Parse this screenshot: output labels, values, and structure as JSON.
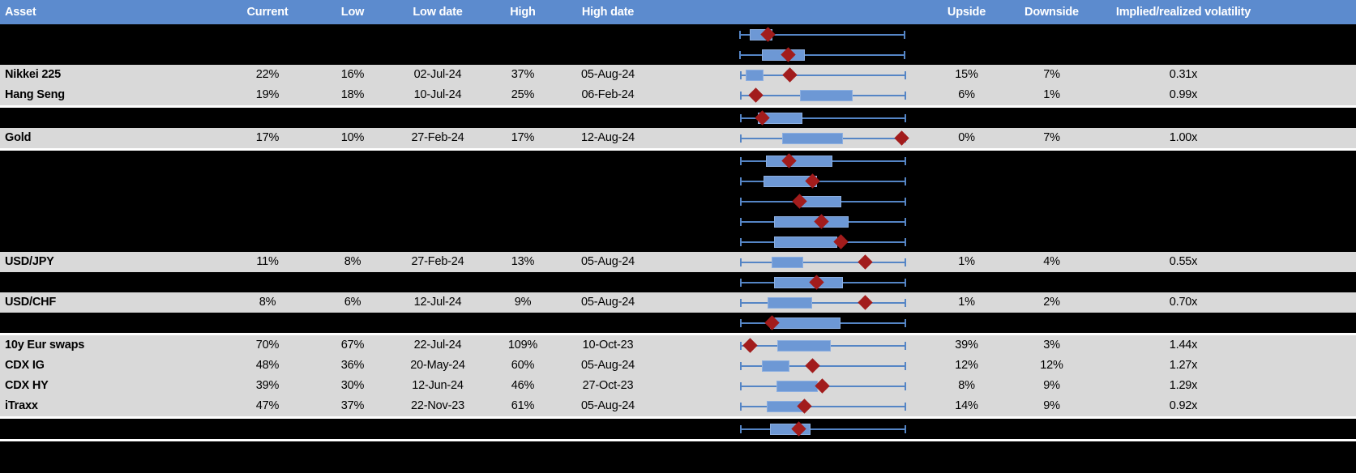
{
  "title": "Implied volatility ranges table",
  "colors": {
    "header_bg": "#5c8bce",
    "row_bg": "#d9d9d9",
    "redacted_bg": "#000000",
    "whisker_blue": "#5585c5",
    "box_blue": "#6d98d5",
    "marker_red": "#a21c1c",
    "header_text": "#ffffff",
    "separator": "#ffffff"
  },
  "header": {
    "columns": [
      "Asset",
      "Current",
      "Low",
      "Low date",
      "High",
      "High date",
      "",
      "Upside",
      "Downside",
      "Implied/realized volatility"
    ]
  },
  "chart_data": {
    "type": "box-whisker-rows",
    "note": "per-row range plot; values are % positions across the chart cell",
    "whisker_lo": 29.5,
    "whisker_hi": 94.5
  },
  "rows": [
    {
      "type": "redacted",
      "chart": {
        "lo": 29.2,
        "hi": 94.3,
        "box_lo": 33.3,
        "box_hi": 42.2,
        "marker": 40.6
      }
    },
    {
      "type": "redacted",
      "chart": {
        "lo": 29.2,
        "hi": 94.3,
        "box_lo": 38.1,
        "box_hi": 54.9,
        "marker": 48.3
      }
    },
    {
      "type": "data",
      "asset": "Nikkei 225",
      "current": "22%",
      "low": "16%",
      "low_date": "02-Jul-24",
      "high": "37%",
      "high_date": "05-Aug-24",
      "upside": "15%",
      "downside": "7%",
      "implied_realized": "0.31x",
      "chart": {
        "lo": 29.5,
        "hi": 94.5,
        "box_lo": 31.7,
        "box_hi": 38.7,
        "marker": 49.2
      }
    },
    {
      "type": "data",
      "asset": "Hang Seng",
      "current": "19%",
      "low": "18%",
      "low_date": "10-Jul-24",
      "high": "25%",
      "high_date": "06-Feb-24",
      "upside": "6%",
      "downside": "1%",
      "implied_realized": "0.99x",
      "chart": {
        "lo": 29.5,
        "hi": 94.5,
        "box_lo": 53.0,
        "box_hi": 73.7,
        "marker": 35.6
      }
    },
    {
      "type": "separator"
    },
    {
      "type": "redacted",
      "chart": {
        "lo": 29.5,
        "hi": 94.5,
        "box_lo": 36.5,
        "box_hi": 54.0,
        "marker": 38.4
      }
    },
    {
      "type": "data",
      "asset": "Gold",
      "current": "17%",
      "low": "10%",
      "low_date": "27-Feb-24",
      "high": "17%",
      "high_date": "12-Aug-24",
      "upside": "0%",
      "downside": "7%",
      "implied_realized": "1.00x",
      "chart": {
        "lo": 29.5,
        "hi": 94.5,
        "box_lo": 46.0,
        "box_hi": 69.8,
        "marker": 93.0
      }
    },
    {
      "type": "separator"
    },
    {
      "type": "redacted",
      "chart": {
        "lo": 29.5,
        "hi": 94.5,
        "box_lo": 39.7,
        "box_hi": 65.7,
        "marker": 48.6
      }
    },
    {
      "type": "redacted",
      "chart": {
        "lo": 29.5,
        "hi": 94.5,
        "box_lo": 38.7,
        "box_hi": 59.7,
        "marker": 57.8
      }
    },
    {
      "type": "redacted",
      "chart": {
        "lo": 29.5,
        "hi": 94.5,
        "box_lo": 53.3,
        "box_hi": 69.2,
        "marker": 53.0
      }
    },
    {
      "type": "redacted",
      "chart": {
        "lo": 29.5,
        "hi": 94.5,
        "box_lo": 42.9,
        "box_hi": 72.1,
        "marker": 61.3
      }
    },
    {
      "type": "redacted",
      "chart": {
        "lo": 29.5,
        "hi": 94.5,
        "box_lo": 42.9,
        "box_hi": 67.6,
        "marker": 69.2
      }
    },
    {
      "type": "data",
      "asset": "USD/JPY",
      "current": "11%",
      "low": "8%",
      "low_date": "27-Feb-24",
      "high": "13%",
      "high_date": "05-Aug-24",
      "upside": "1%",
      "downside": "4%",
      "implied_realized": "0.55x",
      "chart": {
        "lo": 29.5,
        "hi": 94.5,
        "box_lo": 41.9,
        "box_hi": 54.3,
        "marker": 78.7
      }
    },
    {
      "type": "redacted",
      "chart": {
        "lo": 29.5,
        "hi": 94.5,
        "box_lo": 42.9,
        "box_hi": 69.8,
        "marker": 59.4
      }
    },
    {
      "type": "data",
      "asset": "USD/CHF",
      "current": "8%",
      "low": "6%",
      "low_date": "12-Jul-24",
      "high": "9%",
      "high_date": "05-Aug-24",
      "upside": "1%",
      "downside": "2%",
      "implied_realized": "0.70x",
      "chart": {
        "lo": 29.5,
        "hi": 94.5,
        "box_lo": 40.3,
        "box_hi": 57.8,
        "marker": 78.7
      }
    },
    {
      "type": "redacted",
      "chart": {
        "lo": 29.5,
        "hi": 94.5,
        "box_lo": 41.3,
        "box_hi": 68.9,
        "marker": 42.2
      }
    },
    {
      "type": "separator"
    },
    {
      "type": "data",
      "asset": "10y Eur swaps",
      "current": "70%",
      "low": "67%",
      "low_date": "22-Jul-24",
      "high": "109%",
      "high_date": "10-Oct-23",
      "upside": "39%",
      "downside": "3%",
      "implied_realized": "1.44x",
      "chart": {
        "lo": 29.5,
        "hi": 94.5,
        "box_lo": 44.0,
        "box_hi": 65.1,
        "marker": 33.5
      }
    },
    {
      "type": "data",
      "asset": "CDX IG",
      "current": "48%",
      "low": "36%",
      "low_date": "20-May-24",
      "high": "60%",
      "high_date": "05-Aug-24",
      "upside": "12%",
      "downside": "12%",
      "implied_realized": "1.27x",
      "chart": {
        "lo": 29.5,
        "hi": 94.5,
        "box_lo": 38.0,
        "box_hi": 48.9,
        "marker": 58.0
      }
    },
    {
      "type": "data",
      "asset": "CDX HY",
      "current": "39%",
      "low": "30%",
      "low_date": "12-Jun-24",
      "high": "46%",
      "high_date": "27-Oct-23",
      "upside": "8%",
      "downside": "9%",
      "implied_realized": "1.29x",
      "chart": {
        "lo": 29.5,
        "hi": 94.5,
        "box_lo": 43.8,
        "box_hi": 60.0,
        "marker": 61.9
      }
    },
    {
      "type": "data",
      "asset": "iTraxx",
      "current": "47%",
      "low": "37%",
      "low_date": "22-Nov-23",
      "high": "61%",
      "high_date": "05-Aug-24",
      "upside": "14%",
      "downside": "9%",
      "implied_realized": "0.92x",
      "chart": {
        "lo": 29.5,
        "hi": 94.5,
        "box_lo": 40.0,
        "box_hi": 54.3,
        "marker": 54.9
      }
    },
    {
      "type": "separator"
    },
    {
      "type": "redacted",
      "chart": {
        "lo": 29.5,
        "hi": 94.5,
        "box_lo": 41.3,
        "box_hi": 57.1,
        "marker": 52.4
      }
    },
    {
      "type": "separator"
    }
  ]
}
